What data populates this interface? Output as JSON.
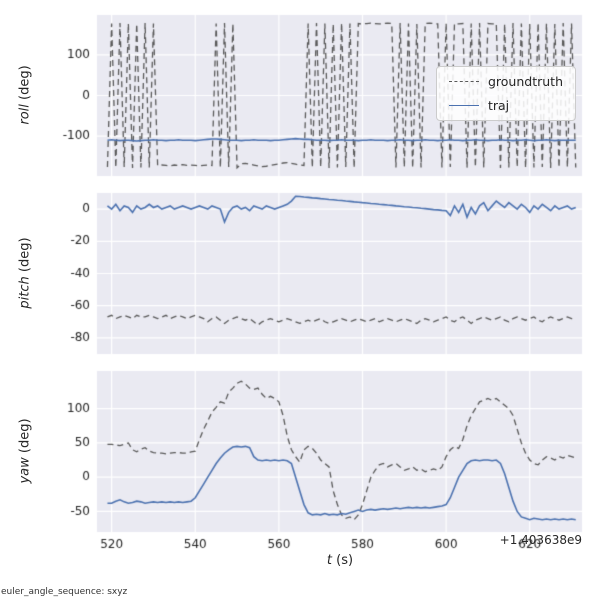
{
  "figure": {
    "background": "#ffffff",
    "panel_bg": "#eaeaf2",
    "grid_color": "#ffffff",
    "text_color": "#262626",
    "footer": "euler_angle_sequence: sxyz"
  },
  "legend": {
    "items": [
      {
        "label": "groundtruth",
        "color": "#595959",
        "dash": true
      },
      {
        "label": "traj",
        "color": "#4c72b0",
        "dash": false
      }
    ]
  },
  "chart_data": {
    "type": "line",
    "title": "",
    "x_label_name": "t",
    "x_label_unit": " (s)",
    "x_offset": "+1.403638e9",
    "xlim": [
      516.5,
      632.5
    ],
    "xticks": [
      520,
      540,
      560,
      580,
      600,
      620
    ],
    "legend_position": "upper right of roll panel",
    "grid": true,
    "x": [
      519,
      520,
      521,
      522,
      523,
      524,
      525,
      526,
      527,
      528,
      529,
      530,
      531,
      532,
      533,
      534,
      535,
      536,
      537,
      538,
      539,
      540,
      541,
      542,
      543,
      544,
      545,
      546,
      547,
      548,
      549,
      550,
      551,
      552,
      553,
      554,
      555,
      556,
      557,
      558,
      559,
      560,
      561,
      562,
      563,
      564,
      565,
      566,
      567,
      568,
      569,
      570,
      571,
      572,
      573,
      574,
      575,
      576,
      577,
      578,
      579,
      580,
      581,
      582,
      583,
      584,
      585,
      586,
      587,
      588,
      589,
      590,
      591,
      592,
      593,
      594,
      595,
      596,
      597,
      598,
      599,
      600,
      601,
      602,
      603,
      604,
      605,
      606,
      607,
      608,
      609,
      610,
      611,
      612,
      613,
      614,
      615,
      616,
      617,
      618,
      619,
      620,
      621,
      622,
      623,
      624,
      625,
      626,
      627,
      628,
      629,
      630,
      631
    ],
    "panels": [
      {
        "ylabel_name": "roll",
        "ylabel_unit": " (deg)",
        "ylim": [
          -198,
          198
        ],
        "yticks": [
          100,
          0,
          -100
        ],
        "series": [
          {
            "name": "groundtruth",
            "color": "#595959",
            "dash": true,
            "values": [
              -176,
              177,
              -177,
              178,
              -176,
              177,
              -178,
              176,
              -177,
              178,
              -177,
              177,
              -172,
              -171,
              -172,
              -173,
              -171,
              -172,
              -170,
              -172,
              -171,
              -172,
              -173,
              -172,
              -171,
              -172,
              177,
              -177,
              178,
              -176,
              177,
              -178,
              -168,
              -167,
              -169,
              -171,
              -173,
              -175,
              -174,
              -172,
              -170,
              -168,
              -166,
              -165,
              -167,
              -169,
              -171,
              -172,
              177,
              -177,
              178,
              -176,
              177,
              -178,
              176,
              -177,
              178,
              -176,
              177,
              -178,
              177,
              176,
              177,
              178,
              177,
              176,
              177,
              178,
              177,
              -177,
              178,
              -176,
              177,
              -178,
              176,
              -177,
              177,
              178,
              177,
              176,
              -177,
              178,
              -176,
              177,
              176,
              177,
              -178,
              177,
              -176,
              178,
              -177,
              177,
              176,
              177,
              -178,
              176,
              -177,
              178,
              -176,
              177,
              -178,
              176,
              -177,
              178,
              -176,
              177,
              -178,
              176,
              -177,
              178,
              -176,
              177,
              -177
            ]
          },
          {
            "name": "traj",
            "color": "#4c72b0",
            "dash": false,
            "values": [
              -110,
              -109,
              -110,
              -111,
              -110,
              -110,
              -111,
              -112,
              -111,
              -110,
              -110,
              -109,
              -110,
              -110,
              -111,
              -110,
              -110,
              -109,
              -110,
              -110,
              -110,
              -111,
              -110,
              -109,
              -108,
              -107,
              -107,
              -108,
              -109,
              -110,
              -110,
              -110,
              -111,
              -110,
              -110,
              -109,
              -110,
              -110,
              -110,
              -111,
              -110,
              -110,
              -109,
              -108,
              -107,
              -106,
              -107,
              -108,
              -108,
              -109,
              -110,
              -110,
              -110,
              -111,
              -110,
              -110,
              -109,
              -110,
              -110,
              -110,
              -111,
              -110,
              -110,
              -109,
              -110,
              -110,
              -110,
              -111,
              -110,
              -110,
              -109,
              -110,
              -110,
              -111,
              -110,
              -110,
              -109,
              -110,
              -110,
              -111,
              -110,
              -110,
              -109,
              -110,
              -110,
              -111,
              -110,
              -110,
              -109,
              -110,
              -110,
              -111,
              -110,
              -110,
              -109,
              -110,
              -110,
              -111,
              -110,
              -110,
              -109,
              -110,
              -111,
              -110,
              -110,
              -109,
              -110,
              -111,
              -110,
              -110,
              -110,
              -110,
              -110
            ]
          }
        ]
      },
      {
        "ylabel_name": "pitch",
        "ylabel_unit": " (deg)",
        "ylim": [
          -90,
          10
        ],
        "yticks": [
          0,
          -20,
          -40,
          -60,
          -80
        ],
        "series": [
          {
            "name": "groundtruth",
            "color": "#595959",
            "dash": true,
            "values": [
              -67,
              -66,
              -68,
              -67,
              -66,
              -67,
              -68,
              -66,
              -67,
              -67,
              -66,
              -67,
              -68,
              -67,
              -66,
              -68,
              -67,
              -66,
              -67,
              -68,
              -67,
              -66,
              -67,
              -68,
              -70,
              -68,
              -67,
              -69,
              -71,
              -69,
              -68,
              -67,
              -68,
              -69,
              -68,
              -70,
              -72,
              -70,
              -69,
              -68,
              -69,
              -70,
              -69,
              -68,
              -69,
              -70,
              -71,
              -70,
              -69,
              -70,
              -69,
              -68,
              -70,
              -71,
              -70,
              -69,
              -68,
              -69,
              -70,
              -69,
              -68,
              -69,
              -70,
              -69,
              -68,
              -70,
              -69,
              -68,
              -69,
              -70,
              -69,
              -68,
              -69,
              -70,
              -71,
              -69,
              -68,
              -69,
              -70,
              -69,
              -68,
              -67,
              -69,
              -70,
              -68,
              -67,
              -69,
              -71,
              -69,
              -68,
              -67,
              -68,
              -69,
              -68,
              -67,
              -69,
              -70,
              -68,
              -67,
              -68,
              -69,
              -68,
              -67,
              -69,
              -70,
              -68,
              -67,
              -68,
              -69,
              -68,
              -67,
              -68,
              -68
            ]
          },
          {
            "name": "traj",
            "color": "#4c72b0",
            "dash": false,
            "values": [
              2,
              0,
              3,
              -1,
              2,
              1,
              -2,
              2,
              0,
              1,
              3,
              1,
              2,
              0,
              1,
              2,
              0,
              1,
              2,
              1,
              0,
              1,
              2,
              1,
              0,
              2,
              1,
              0,
              -8,
              -2,
              1,
              2,
              0,
              1,
              -1,
              2,
              1,
              0,
              2,
              1,
              0,
              1,
              2,
              3,
              5,
              8,
              7.8,
              7.5,
              7.3,
              7.0,
              6.8,
              6.5,
              6.3,
              6.0,
              5.8,
              5.5,
              5.3,
              5.0,
              4.8,
              4.5,
              4.3,
              4.0,
              3.8,
              3.5,
              3.3,
              3.0,
              2.8,
              2.5,
              2.3,
              2.0,
              1.8,
              1.5,
              1.3,
              1.0,
              0.8,
              0.5,
              0.3,
              0.0,
              -0.3,
              -0.5,
              -0.8,
              -1.0,
              -4,
              2,
              -2,
              3,
              -5,
              1,
              -3,
              2,
              4,
              -1,
              2,
              5,
              3,
              1,
              4,
              2,
              0,
              3,
              1,
              -2,
              2,
              0,
              3,
              1,
              -1,
              2,
              0,
              1,
              2,
              0,
              1
            ]
          }
        ]
      },
      {
        "ylabel_name": "yaw",
        "ylabel_unit": " (deg)",
        "ylim": [
          -80,
          155
        ],
        "yticks": [
          100,
          50,
          0,
          -50
        ],
        "series": [
          {
            "name": "groundtruth",
            "color": "#595959",
            "dash": true,
            "values": [
              48,
              48,
              47,
              46,
              48,
              50,
              40,
              37,
              41,
              43,
              38,
              36,
              35,
              35,
              34,
              35,
              36,
              36,
              35,
              35,
              37,
              38,
              55,
              70,
              82,
              95,
              102,
              110,
              108,
              124,
              130,
              137,
              140,
              136,
              130,
              128,
              130,
              121,
              115,
              118,
              115,
              110,
              90,
              60,
              40,
              30,
              22,
              40,
              45,
              42,
              35,
              25,
              20,
              15,
              -20,
              -40,
              -55,
              -60,
              -58,
              -62,
              -55,
              -40,
              -20,
              0,
              10,
              18,
              20,
              15,
              18,
              20,
              15,
              10,
              12,
              15,
              10,
              12,
              8,
              10,
              12,
              10,
              15,
              30,
              40,
              45,
              42,
              55,
              75,
              90,
              100,
              110,
              112,
              115,
              112,
              115,
              110,
              105,
              100,
              90,
              70,
              50,
              35,
              25,
              20,
              18,
              25,
              30,
              28,
              25,
              30,
              28,
              32,
              30,
              28
            ]
          },
          {
            "name": "traj",
            "color": "#4c72b0",
            "dash": false,
            "values": [
              -38,
              -38,
              -35,
              -33,
              -36,
              -38,
              -37,
              -35,
              -36,
              -38,
              -37,
              -36,
              -37,
              -36,
              -37,
              -36,
              -37,
              -36,
              -37,
              -36,
              -35,
              -30,
              -20,
              -10,
              0,
              10,
              20,
              28,
              35,
              40,
              44,
              45,
              44,
              45,
              43,
              30,
              25,
              24,
              25,
              24,
              25,
              24,
              25,
              24,
              20,
              0,
              -20,
              -40,
              -52,
              -55,
              -54,
              -55,
              -53,
              -55,
              -54,
              -55,
              -53,
              -54,
              -52,
              -50,
              -48,
              -50,
              -48,
              -47,
              -48,
              -47,
              -46,
              -47,
              -46,
              -45,
              -46,
              -45,
              -44,
              -45,
              -44,
              -45,
              -44,
              -45,
              -44,
              -43,
              -42,
              -40,
              -30,
              -15,
              0,
              10,
              20,
              24,
              25,
              24,
              25,
              25,
              24,
              25,
              20,
              5,
              -15,
              -35,
              -50,
              -58,
              -60,
              -62,
              -60,
              -61,
              -62,
              -61,
              -62,
              -61,
              -62,
              -61,
              -62,
              -61,
              -62
            ]
          }
        ]
      }
    ]
  }
}
